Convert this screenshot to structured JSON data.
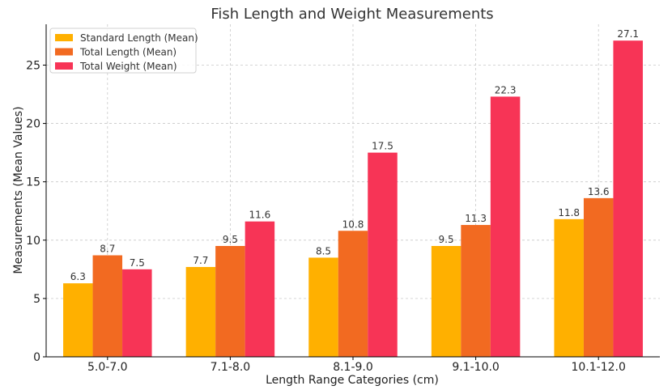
{
  "chart_data": {
    "type": "bar",
    "title": "Fish Length and Weight Measurements",
    "xlabel": "Length Range Categories (cm)",
    "ylabel": "Measurements (Mean Values)",
    "categories": [
      "5.0-7.0",
      "7.1-8.0",
      "8.1-9.0",
      "9.1-10.0",
      "10.1-12.0"
    ],
    "ylim": [
      0,
      28.5
    ],
    "yticks": [
      0,
      5,
      10,
      15,
      20,
      25
    ],
    "grid": true,
    "legend_position": "top-left",
    "series": [
      {
        "name": "Standard Length (Mean)",
        "color": "#FFB000",
        "values": [
          6.3,
          7.7,
          8.5,
          9.5,
          11.8
        ]
      },
      {
        "name": "Total Length (Mean)",
        "color": "#F26A21",
        "values": [
          8.7,
          9.5,
          10.8,
          11.3,
          13.6
        ]
      },
      {
        "name": "Total Weight (Mean)",
        "color": "#F73456",
        "values": [
          7.5,
          11.6,
          17.5,
          22.3,
          27.1
        ]
      }
    ]
  }
}
